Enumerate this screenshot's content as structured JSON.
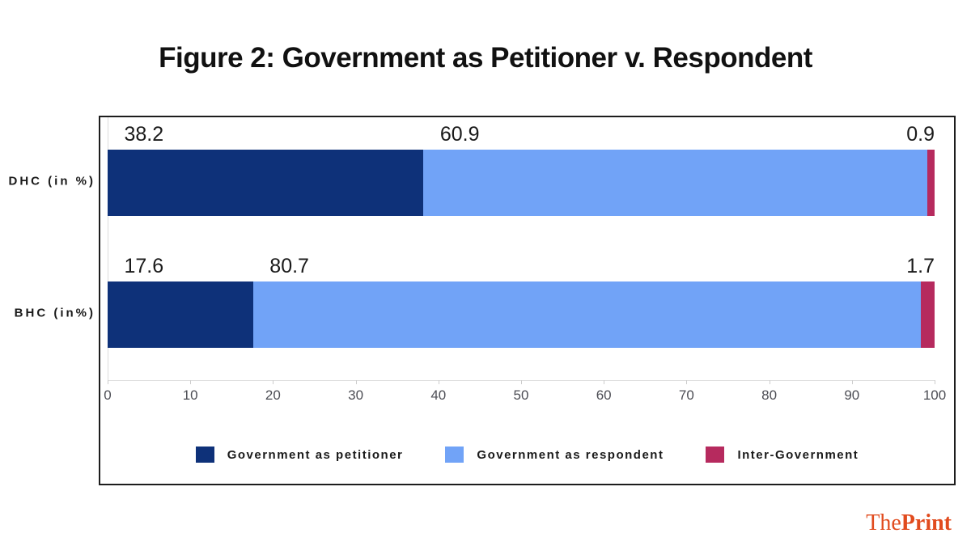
{
  "title": "Figure 2: Government as Petitioner v. Respondent",
  "chart_data": {
    "type": "bar",
    "orientation": "horizontal",
    "stacked": true,
    "categories": [
      "DHC (in %)",
      "BHC (in%)"
    ],
    "series": [
      {
        "name": "Government as petitioner",
        "color": "#0e3179",
        "values": [
          38.2,
          17.6
        ]
      },
      {
        "name": "Government as respondent",
        "color": "#71a3f7",
        "values": [
          60.9,
          80.7
        ]
      },
      {
        "name": "Inter-Government",
        "color": "#b62a5e",
        "values": [
          0.9,
          1.7
        ]
      }
    ],
    "xlim": [
      0,
      100
    ],
    "x_ticks": [
      0,
      10,
      20,
      30,
      40,
      50,
      60,
      70,
      80,
      90,
      100
    ],
    "legend_position": "bottom",
    "grid": false,
    "data_labels": true
  },
  "branding": {
    "logo_the": "The",
    "logo_print": "Print",
    "logo_color": "#e14b1e"
  }
}
